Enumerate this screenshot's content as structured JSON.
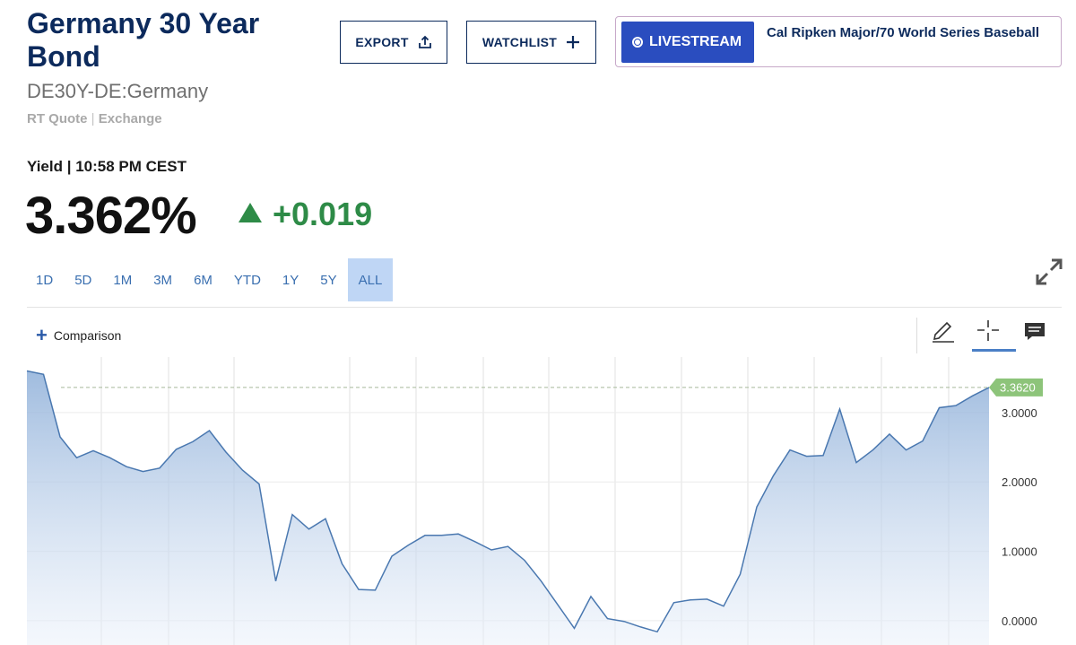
{
  "header": {
    "title": "Germany 30 Year Bond",
    "symbol": "DE30Y-DE:Germany",
    "quote_type": "RT Quote",
    "quote_sep": "|",
    "quote_source": "Exchange",
    "export_label": "EXPORT",
    "watchlist_label": "WATCHLIST"
  },
  "livestream": {
    "button_label": "LIVESTREAM",
    "headline": "Cal Ripken Major/70 World Series Baseball"
  },
  "quote": {
    "label": "Yield | 10:58 PM CEST",
    "value": "3.362%",
    "change": "+0.019",
    "direction": "up"
  },
  "ranges": {
    "items": [
      "1D",
      "5D",
      "1M",
      "3M",
      "6M",
      "YTD",
      "1Y",
      "5Y",
      "ALL"
    ],
    "active": "ALL"
  },
  "toolbar": {
    "comparison_label": "Comparison",
    "tools": [
      "pencil-icon",
      "crosshair-icon",
      "comment-icon"
    ],
    "active_tool": "crosshair-icon"
  },
  "colors": {
    "title": "#0c2a5c",
    "accent": "#2a4dbf",
    "positive": "#2e8b47",
    "line": "#4a78b0",
    "current_tag": "#8dc47a"
  },
  "chart_data": {
    "type": "area",
    "series": [
      {
        "values": [
          3.6,
          3.55,
          2.65,
          2.35,
          2.45,
          2.35,
          2.22,
          2.15,
          2.2,
          2.47,
          2.58,
          2.74,
          2.43,
          2.17,
          1.97,
          0.57,
          1.53,
          1.32,
          1.47,
          0.82,
          0.45,
          0.44,
          0.93,
          1.09,
          1.23,
          1.23,
          1.25,
          1.14,
          1.02,
          1.07,
          0.87,
          0.57,
          0.23,
          -0.11,
          0.35,
          0.03,
          -0.01,
          -0.09,
          -0.16,
          0.26,
          0.3,
          0.31,
          0.21,
          0.67,
          1.64,
          2.09,
          2.46,
          2.37,
          2.38,
          3.05,
          2.28,
          2.46,
          2.69,
          2.46,
          2.59,
          3.07,
          3.1,
          3.24,
          3.362
        ]
      }
    ],
    "ylim": [
      -0.35,
      3.8
    ],
    "yticks": [
      "0.0000",
      "1.0000",
      "2.0000",
      "3.0000"
    ],
    "current_value_label": "3.3620",
    "current_value": 3.362,
    "grid": true
  }
}
